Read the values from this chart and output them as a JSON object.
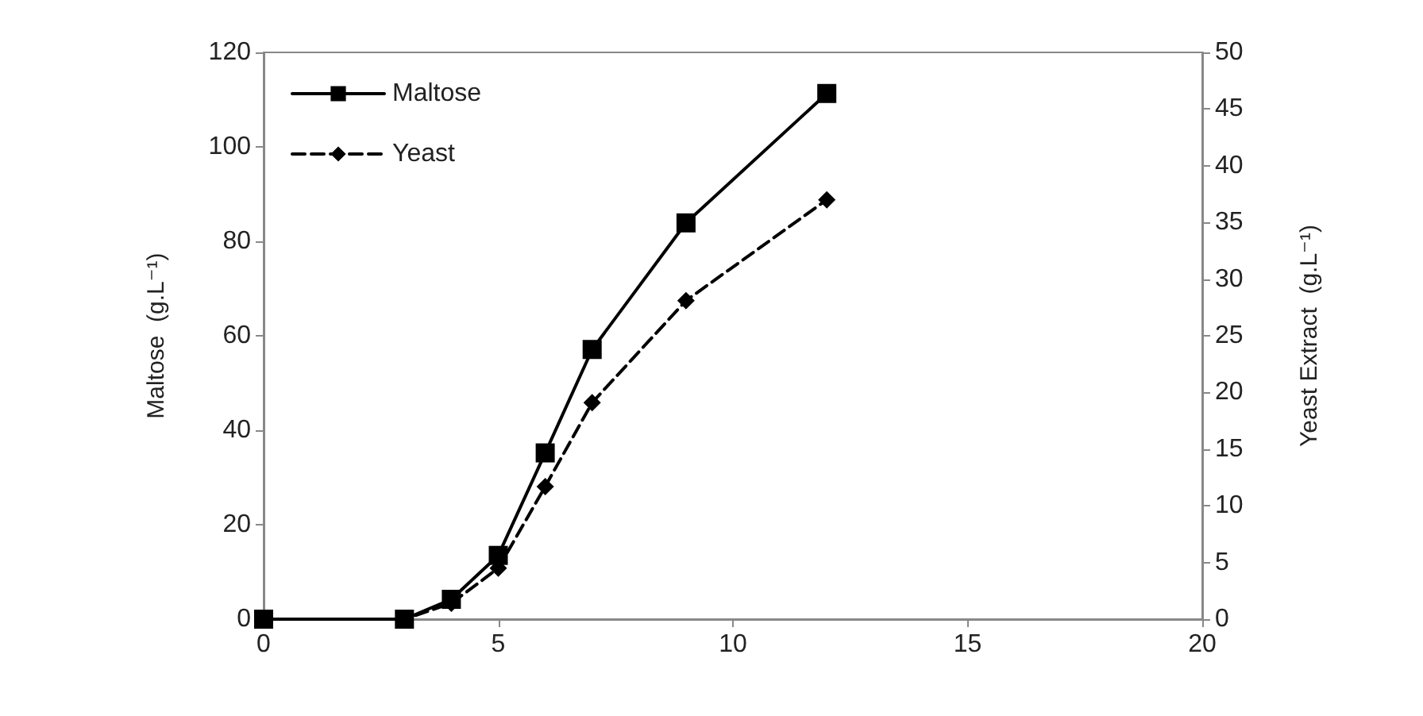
{
  "chart_data": {
    "type": "line",
    "ylabel": "Maltose  (g.L⁻¹)",
    "y2label": "Yeast Extract  (g.L⁻¹)",
    "x": [
      0,
      3,
      4,
      5,
      6,
      7,
      9,
      12
    ],
    "series": [
      {
        "name": "Maltose",
        "color": "#000000",
        "marker": "square",
        "line_style": "solid",
        "values": [
          0,
          0,
          4.2,
          13.5,
          35.2,
          57.1,
          83.9,
          111.3
        ]
      },
      {
        "name": "Yeast",
        "color": "#000000",
        "marker": "diamond",
        "line_style": "dashed",
        "axis": "y2",
        "values": [
          0,
          0,
          1.4,
          4.5,
          11.7,
          19.1,
          28.1,
          37.0
        ]
      }
    ],
    "xlim": [
      0,
      20
    ],
    "xticks": [
      0,
      5,
      10,
      15,
      20
    ],
    "ylim": [
      0,
      120
    ],
    "yticks": [
      0,
      20,
      40,
      60,
      80,
      100,
      120
    ],
    "y2lim": [
      0,
      50
    ],
    "y2ticks": [
      0,
      5,
      10,
      15,
      20,
      25,
      30,
      35,
      40,
      45,
      50
    ],
    "grid": false,
    "legend": "top left"
  }
}
